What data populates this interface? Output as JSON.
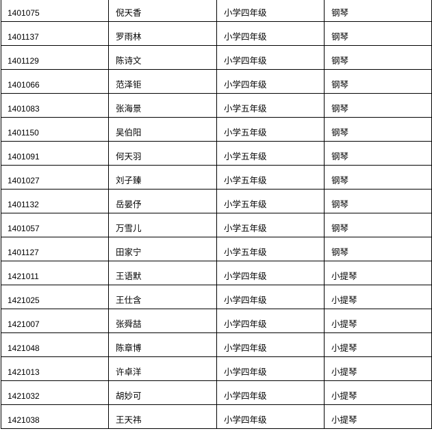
{
  "rows": [
    {
      "id": "1401075",
      "name": "倪天香",
      "grade": "小学四年级",
      "instrument": "钢琴"
    },
    {
      "id": "1401137",
      "name": "罗雨林",
      "grade": "小学四年级",
      "instrument": "钢琴"
    },
    {
      "id": "1401129",
      "name": "陈诗文",
      "grade": "小学四年级",
      "instrument": "钢琴"
    },
    {
      "id": "1401066",
      "name": "范泽钜",
      "grade": "小学四年级",
      "instrument": "钢琴"
    },
    {
      "id": "1401083",
      "name": "张海景",
      "grade": "小学五年级",
      "instrument": "钢琴"
    },
    {
      "id": "1401150",
      "name": "吴伯阳",
      "grade": "小学五年级",
      "instrument": "钢琴"
    },
    {
      "id": "1401091",
      "name": "何天羽",
      "grade": "小学五年级",
      "instrument": "钢琴"
    },
    {
      "id": "1401027",
      "name": "刘子臻",
      "grade": "小学五年级",
      "instrument": "钢琴"
    },
    {
      "id": "1401132",
      "name": "岳晏伃",
      "grade": "小学五年级",
      "instrument": "钢琴"
    },
    {
      "id": "1401057",
      "name": "万雪儿",
      "grade": "小学五年级",
      "instrument": "钢琴"
    },
    {
      "id": "1401127",
      "name": "田家宁",
      "grade": "小学五年级",
      "instrument": "钢琴"
    },
    {
      "id": "1421011",
      "name": "王语默",
      "grade": "小学四年级",
      "instrument": "小提琴"
    },
    {
      "id": "1421025",
      "name": "王仕含",
      "grade": "小学四年级",
      "instrument": "小提琴"
    },
    {
      "id": "1421007",
      "name": "张舜喆",
      "grade": "小学四年级",
      "instrument": "小提琴"
    },
    {
      "id": "1421048",
      "name": "陈章博",
      "grade": "小学四年级",
      "instrument": "小提琴"
    },
    {
      "id": "1421013",
      "name": "许卓洋",
      "grade": "小学四年级",
      "instrument": "小提琴"
    },
    {
      "id": "1421032",
      "name": "胡妙可",
      "grade": "小学四年级",
      "instrument": "小提琴"
    },
    {
      "id": "1421038",
      "name": "王天祎",
      "grade": "小学四年级",
      "instrument": "小提琴"
    }
  ]
}
